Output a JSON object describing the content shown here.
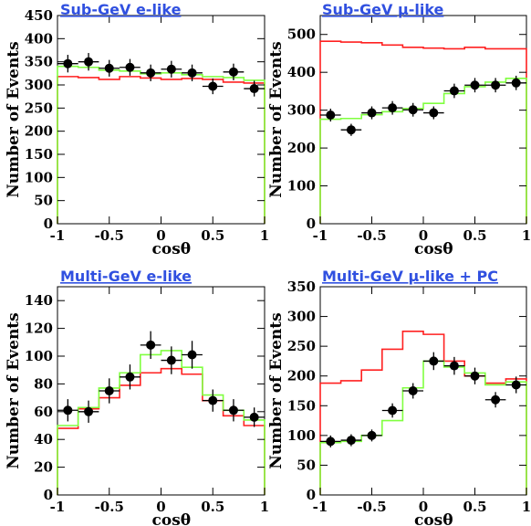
{
  "chart_data": [
    {
      "type": "histogram",
      "title": "Sub-GeV e-like",
      "xlabel": "cosθ",
      "ylabel": "Number of Events",
      "xlim": [
        -1,
        1
      ],
      "ylim": [
        0,
        450
      ],
      "xticks": [
        "-1",
        "-0.5",
        "0",
        "0.5",
        "1"
      ],
      "yticks": [
        "0",
        "50",
        "100",
        "150",
        "200",
        "250",
        "300",
        "350",
        "400",
        "450"
      ],
      "bin_edges": [
        -1,
        -0.8,
        -0.6,
        -0.4,
        -0.2,
        0,
        0.2,
        0.4,
        0.6,
        0.8,
        1
      ],
      "data_points": {
        "x": [
          -0.9,
          -0.7,
          -0.5,
          -0.3,
          -0.1,
          0.1,
          0.3,
          0.5,
          0.7,
          0.9
        ],
        "y": [
          346,
          350,
          336,
          338,
          326,
          334,
          326,
          297,
          328,
          292
        ],
        "yerr": [
          19,
          19,
          18,
          18,
          18,
          18,
          18,
          17,
          18,
          17
        ]
      },
      "series": [
        {
          "color": "#ff2020",
          "values": [
            318,
            316,
            312,
            318,
            315,
            312,
            314,
            312,
            306,
            304
          ]
        },
        {
          "color": "#80ff40",
          "values": [
            340,
            338,
            332,
            330,
            324,
            326,
            322,
            318,
            316,
            310
          ]
        }
      ]
    },
    {
      "type": "histogram",
      "title": "Sub-GeV μ-like",
      "xlabel": "cosθ",
      "ylabel": "Number of Events",
      "xlim": [
        -1,
        1
      ],
      "ylim": [
        0,
        550
      ],
      "xticks": [
        "-1",
        "-0.5",
        "0",
        "0.5",
        "1"
      ],
      "yticks": [
        "0",
        "100",
        "200",
        "300",
        "400",
        "500"
      ],
      "bin_edges": [
        -1,
        -0.8,
        -0.6,
        -0.4,
        -0.2,
        0,
        0.2,
        0.4,
        0.6,
        0.8,
        1
      ],
      "data_points": {
        "x": [
          -0.9,
          -0.7,
          -0.5,
          -0.3,
          -0.1,
          0.1,
          0.3,
          0.5,
          0.7,
          0.9
        ],
        "y": [
          287,
          248,
          293,
          306,
          301,
          293,
          351,
          366,
          366,
          372
        ],
        "yerr": [
          17,
          16,
          17,
          18,
          18,
          17,
          19,
          19,
          19,
          19
        ]
      },
      "series": [
        {
          "color": "#ff2020",
          "values": [
            482,
            480,
            478,
            472,
            466,
            464,
            462,
            466,
            462,
            462
          ]
        },
        {
          "color": "#80ff40",
          "values": [
            276,
            278,
            288,
            296,
            304,
            318,
            344,
            362,
            374,
            384
          ]
        }
      ]
    },
    {
      "type": "histogram",
      "title": "Multi-GeV e-like",
      "xlabel": "cosθ",
      "ylabel": "Number of Events",
      "xlim": [
        -1,
        1
      ],
      "ylim": [
        0,
        150
      ],
      "xticks": [
        "-1",
        "-0.5",
        "0",
        "0.5",
        "1"
      ],
      "yticks": [
        "0",
        "20",
        "40",
        "60",
        "80",
        "100",
        "120",
        "140"
      ],
      "bin_edges": [
        -1,
        -0.8,
        -0.6,
        -0.4,
        -0.2,
        0,
        0.2,
        0.4,
        0.6,
        0.8,
        1
      ],
      "data_points": {
        "x": [
          -0.9,
          -0.7,
          -0.5,
          -0.3,
          -0.1,
          0.1,
          0.3,
          0.5,
          0.7,
          0.9
        ],
        "y": [
          61,
          60,
          75,
          85,
          108,
          97,
          101,
          68,
          61,
          56
        ],
        "yerr": [
          8,
          8,
          9,
          9,
          10,
          10,
          10,
          8,
          8,
          7
        ]
      },
      "series": [
        {
          "color": "#ff2020",
          "values": [
            48,
            62,
            70,
            79,
            88,
            91,
            87,
            68,
            57,
            50
          ]
        },
        {
          "color": "#80ff40",
          "values": [
            50,
            63,
            77,
            88,
            101,
            104,
            92,
            72,
            61,
            54
          ]
        }
      ]
    },
    {
      "type": "histogram",
      "title": "Multi-GeV μ-like + PC",
      "xlabel": "cosθ",
      "ylabel": "Number of Events",
      "xlim": [
        -1,
        1
      ],
      "ylim": [
        0,
        350
      ],
      "xticks": [
        "-1",
        "-0.5",
        "0",
        "0.5",
        "1"
      ],
      "yticks": [
        "0",
        "50",
        "100",
        "150",
        "200",
        "250",
        "300",
        "350"
      ],
      "bin_edges": [
        -1,
        -0.8,
        -0.6,
        -0.4,
        -0.2,
        0,
        0.2,
        0.4,
        0.6,
        0.8,
        1
      ],
      "data_points": {
        "x": [
          -0.9,
          -0.7,
          -0.5,
          -0.3,
          -0.1,
          0.1,
          0.3,
          0.5,
          0.7,
          0.9
        ],
        "y": [
          90,
          92,
          100,
          142,
          175,
          225,
          217,
          200,
          160,
          185
        ],
        "yerr": [
          10,
          10,
          10,
          12,
          13,
          15,
          15,
          14,
          13,
          14
        ]
      },
      "series": [
        {
          "color": "#ff2020",
          "values": [
            188,
            192,
            210,
            245,
            275,
            270,
            225,
            200,
            188,
            195
          ]
        },
        {
          "color": "#80ff40",
          "values": [
            88,
            90,
            100,
            125,
            180,
            225,
            215,
            205,
            185,
            190
          ]
        }
      ]
    }
  ]
}
